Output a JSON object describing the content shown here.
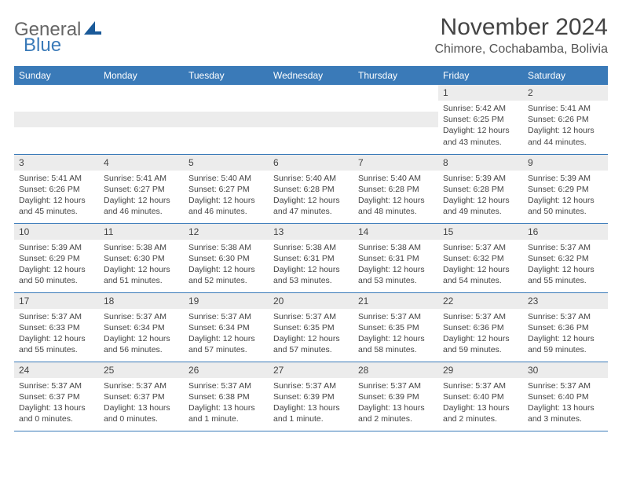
{
  "logo": {
    "text_gray": "General",
    "text_blue": "Blue"
  },
  "title": "November 2024",
  "location": "Chimore, Cochabamba, Bolivia",
  "weekdays": [
    "Sunday",
    "Monday",
    "Tuesday",
    "Wednesday",
    "Thursday",
    "Friday",
    "Saturday"
  ],
  "colors": {
    "header_bg": "#3a7ab8",
    "daynum_bg": "#ececec",
    "text": "#444444",
    "border": "#3a7ab8"
  },
  "font": {
    "title_size": 30,
    "location_size": 16,
    "weekday_size": 12,
    "daynum_size": 12,
    "info_size": 10.5
  },
  "weeks": [
    [
      null,
      null,
      null,
      null,
      null,
      {
        "n": "1",
        "sr": "5:42 AM",
        "ss": "6:25 PM",
        "dl": "12 hours and 43 minutes."
      },
      {
        "n": "2",
        "sr": "5:41 AM",
        "ss": "6:26 PM",
        "dl": "12 hours and 44 minutes."
      }
    ],
    [
      {
        "n": "3",
        "sr": "5:41 AM",
        "ss": "6:26 PM",
        "dl": "12 hours and 45 minutes."
      },
      {
        "n": "4",
        "sr": "5:41 AM",
        "ss": "6:27 PM",
        "dl": "12 hours and 46 minutes."
      },
      {
        "n": "5",
        "sr": "5:40 AM",
        "ss": "6:27 PM",
        "dl": "12 hours and 46 minutes."
      },
      {
        "n": "6",
        "sr": "5:40 AM",
        "ss": "6:28 PM",
        "dl": "12 hours and 47 minutes."
      },
      {
        "n": "7",
        "sr": "5:40 AM",
        "ss": "6:28 PM",
        "dl": "12 hours and 48 minutes."
      },
      {
        "n": "8",
        "sr": "5:39 AM",
        "ss": "6:28 PM",
        "dl": "12 hours and 49 minutes."
      },
      {
        "n": "9",
        "sr": "5:39 AM",
        "ss": "6:29 PM",
        "dl": "12 hours and 50 minutes."
      }
    ],
    [
      {
        "n": "10",
        "sr": "5:39 AM",
        "ss": "6:29 PM",
        "dl": "12 hours and 50 minutes."
      },
      {
        "n": "11",
        "sr": "5:38 AM",
        "ss": "6:30 PM",
        "dl": "12 hours and 51 minutes."
      },
      {
        "n": "12",
        "sr": "5:38 AM",
        "ss": "6:30 PM",
        "dl": "12 hours and 52 minutes."
      },
      {
        "n": "13",
        "sr": "5:38 AM",
        "ss": "6:31 PM",
        "dl": "12 hours and 53 minutes."
      },
      {
        "n": "14",
        "sr": "5:38 AM",
        "ss": "6:31 PM",
        "dl": "12 hours and 53 minutes."
      },
      {
        "n": "15",
        "sr": "5:37 AM",
        "ss": "6:32 PM",
        "dl": "12 hours and 54 minutes."
      },
      {
        "n": "16",
        "sr": "5:37 AM",
        "ss": "6:32 PM",
        "dl": "12 hours and 55 minutes."
      }
    ],
    [
      {
        "n": "17",
        "sr": "5:37 AM",
        "ss": "6:33 PM",
        "dl": "12 hours and 55 minutes."
      },
      {
        "n": "18",
        "sr": "5:37 AM",
        "ss": "6:34 PM",
        "dl": "12 hours and 56 minutes."
      },
      {
        "n": "19",
        "sr": "5:37 AM",
        "ss": "6:34 PM",
        "dl": "12 hours and 57 minutes."
      },
      {
        "n": "20",
        "sr": "5:37 AM",
        "ss": "6:35 PM",
        "dl": "12 hours and 57 minutes."
      },
      {
        "n": "21",
        "sr": "5:37 AM",
        "ss": "6:35 PM",
        "dl": "12 hours and 58 minutes."
      },
      {
        "n": "22",
        "sr": "5:37 AM",
        "ss": "6:36 PM",
        "dl": "12 hours and 59 minutes."
      },
      {
        "n": "23",
        "sr": "5:37 AM",
        "ss": "6:36 PM",
        "dl": "12 hours and 59 minutes."
      }
    ],
    [
      {
        "n": "24",
        "sr": "5:37 AM",
        "ss": "6:37 PM",
        "dl": "13 hours and 0 minutes."
      },
      {
        "n": "25",
        "sr": "5:37 AM",
        "ss": "6:37 PM",
        "dl": "13 hours and 0 minutes."
      },
      {
        "n": "26",
        "sr": "5:37 AM",
        "ss": "6:38 PM",
        "dl": "13 hours and 1 minute."
      },
      {
        "n": "27",
        "sr": "5:37 AM",
        "ss": "6:39 PM",
        "dl": "13 hours and 1 minute."
      },
      {
        "n": "28",
        "sr": "5:37 AM",
        "ss": "6:39 PM",
        "dl": "13 hours and 2 minutes."
      },
      {
        "n": "29",
        "sr": "5:37 AM",
        "ss": "6:40 PM",
        "dl": "13 hours and 2 minutes."
      },
      {
        "n": "30",
        "sr": "5:37 AM",
        "ss": "6:40 PM",
        "dl": "13 hours and 3 minutes."
      }
    ]
  ],
  "labels": {
    "sunrise": "Sunrise: ",
    "sunset": "Sunset: ",
    "daylight": "Daylight: "
  }
}
